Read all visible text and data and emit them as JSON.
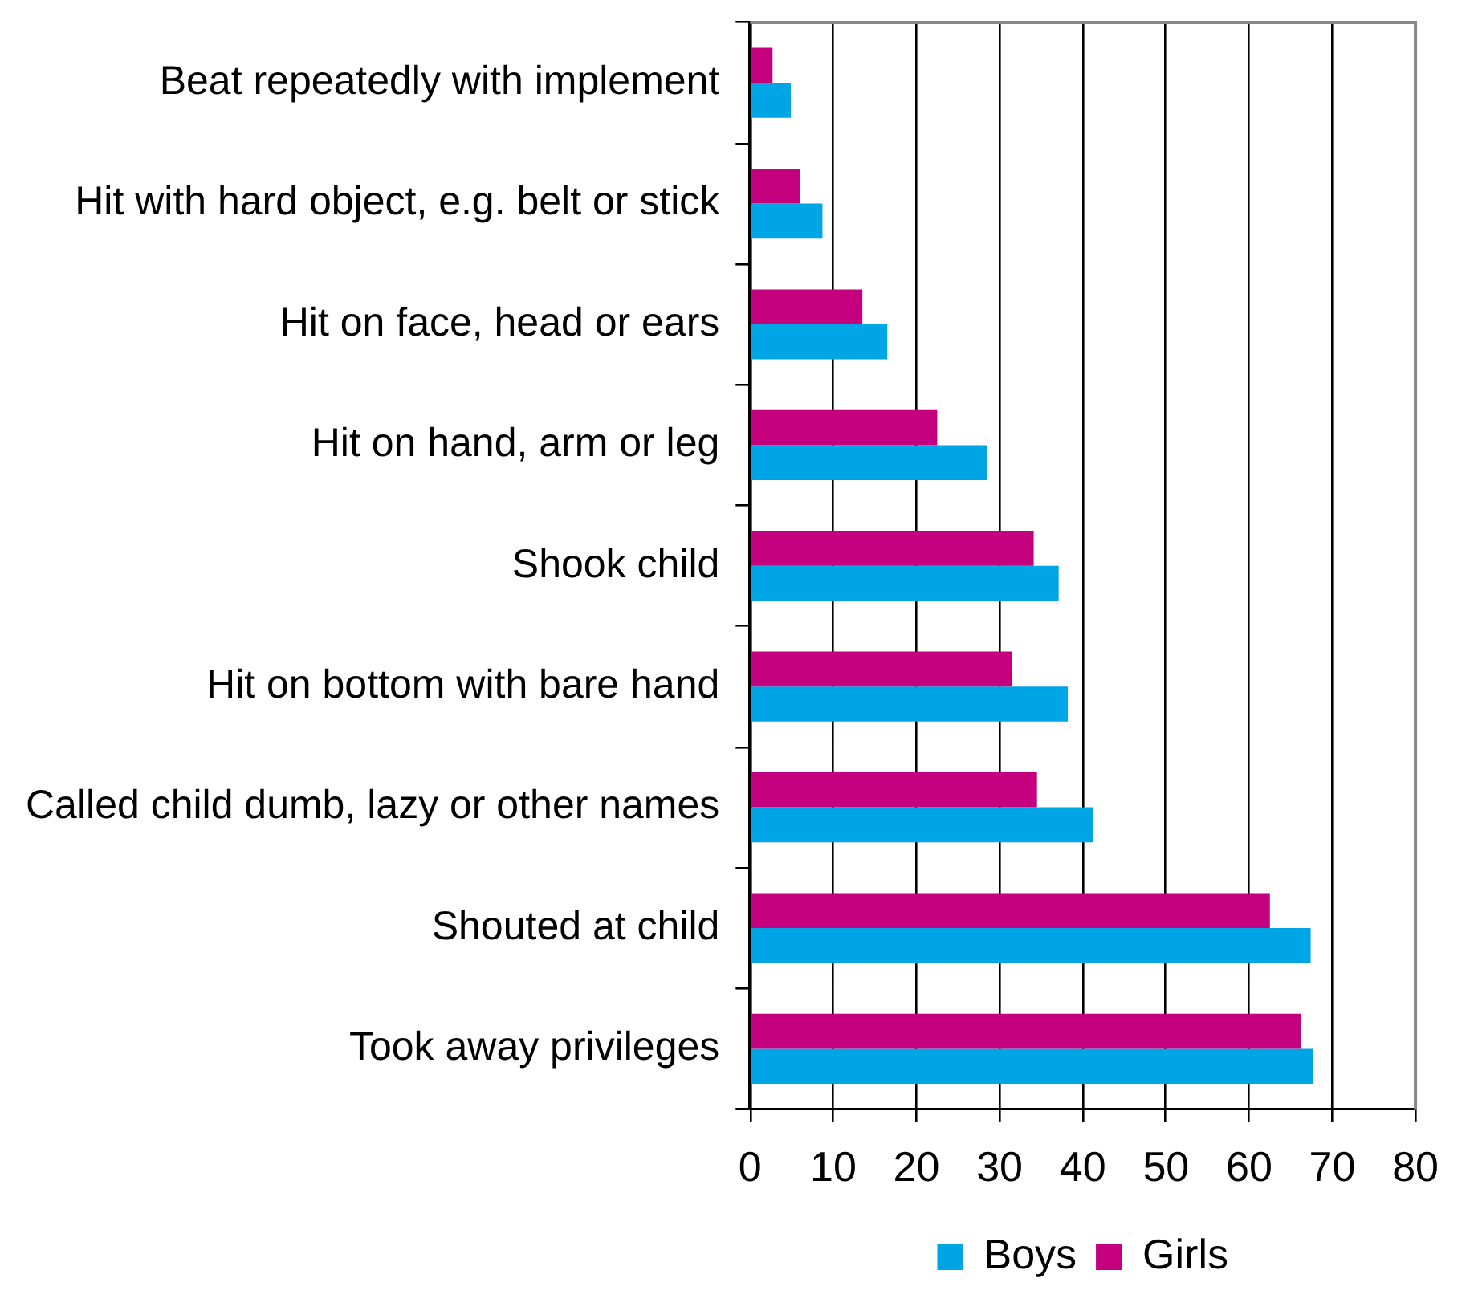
{
  "chart_data": {
    "type": "bar",
    "orientation": "horizontal",
    "categories": [
      "Beat repeatedly with implement",
      "Hit with hard object, e.g. belt or stick",
      "Hit on face, head or ears",
      "Hit on hand, arm or leg",
      "Shook child",
      "Hit on bottom with bare hand",
      "Called child dumb, lazy or other names",
      "Shouted at child",
      "Took away privileges"
    ],
    "series": [
      {
        "name": "Boys",
        "color": "#00a5e6",
        "values": [
          4.9,
          8.7,
          16.5,
          28.5,
          37.1,
          38.2,
          41.2,
          67.4,
          67.7
        ]
      },
      {
        "name": "Girls",
        "color": "#c4007f",
        "values": [
          2.7,
          6.0,
          13.5,
          22.5,
          34.1,
          31.5,
          34.5,
          62.5,
          66.2
        ]
      }
    ],
    "xlim": [
      0,
      80
    ],
    "xticks": [
      0,
      10,
      20,
      30,
      40,
      50,
      60,
      70,
      80
    ],
    "grid": "x",
    "legend": "bottom"
  }
}
